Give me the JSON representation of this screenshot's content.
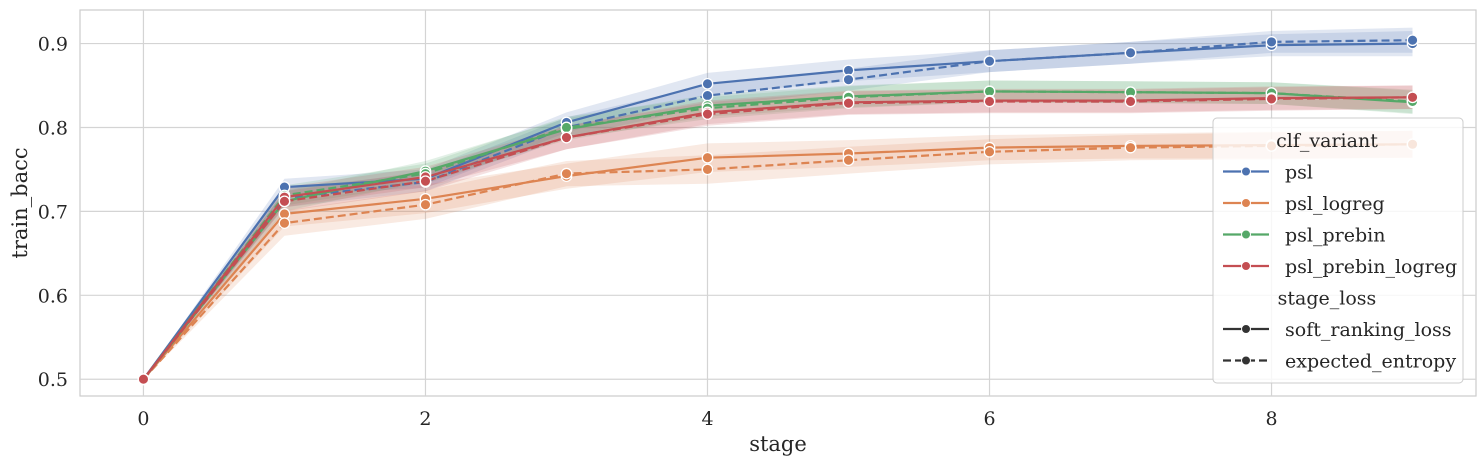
{
  "chart_data": {
    "type": "line",
    "xlabel": "stage",
    "ylabel": "train_bacc",
    "xlim": [
      -0.45,
      9.45
    ],
    "ylim": [
      0.48,
      0.94
    ],
    "xticks": [
      0,
      2,
      4,
      6,
      8
    ],
    "yticks": [
      0.5,
      0.6,
      0.7,
      0.8,
      0.9
    ],
    "xtick_labels": [
      "0",
      "2",
      "4",
      "6",
      "8"
    ],
    "ytick_labels": [
      "0.5",
      "0.6",
      "0.7",
      "0.8",
      "0.9"
    ],
    "grid": true,
    "legend_position": "right",
    "x": [
      0,
      1,
      2,
      3,
      4,
      5,
      6,
      7,
      8,
      9
    ],
    "legend": {
      "hue_title": "clf_variant",
      "style_title": "stage_loss",
      "hue_entries": [
        "psl",
        "psl_logreg",
        "psl_prebin",
        "psl_prebin_logreg"
      ],
      "style_entries": [
        "soft_ranking_loss",
        "expected_entropy"
      ]
    },
    "series": [
      {
        "name": "psl",
        "style": "soft_ranking_loss",
        "color": "#4c72b0",
        "values": [
          0.5,
          0.729,
          0.739,
          0.806,
          0.852,
          0.868,
          0.879,
          0.889,
          0.898,
          0.9
        ],
        "band": [
          0.01,
          0.011,
          0.012,
          0.013,
          0.013,
          0.013,
          0.013,
          0.013,
          0.015
        ]
      },
      {
        "name": "psl",
        "style": "expected_entropy",
        "color": "#4c72b0",
        "values": [
          0.5,
          0.716,
          0.735,
          0.8,
          0.838,
          0.857,
          0.879,
          0.889,
          0.902,
          0.904
        ],
        "band": [
          0.011,
          0.011,
          0.012,
          0.013,
          0.013,
          0.013,
          0.013,
          0.013,
          0.015
        ]
      },
      {
        "name": "psl_logreg",
        "style": "soft_ranking_loss",
        "color": "#dd8452",
        "values": [
          0.5,
          0.697,
          0.715,
          0.742,
          0.764,
          0.769,
          0.776,
          0.778,
          0.779,
          0.78
        ],
        "band": [
          0.015,
          0.017,
          0.015,
          0.017,
          0.016,
          0.015,
          0.015,
          0.016,
          0.016
        ]
      },
      {
        "name": "psl_logreg",
        "style": "expected_entropy",
        "color": "#dd8452",
        "values": [
          0.5,
          0.686,
          0.708,
          0.745,
          0.75,
          0.761,
          0.771,
          0.776,
          0.778,
          0.78
        ],
        "band": [
          0.015,
          0.017,
          0.015,
          0.017,
          0.016,
          0.015,
          0.015,
          0.016,
          0.016
        ]
      },
      {
        "name": "psl_prebin",
        "style": "soft_ranking_loss",
        "color": "#55a868",
        "values": [
          0.5,
          0.712,
          0.748,
          0.798,
          0.826,
          0.837,
          0.843,
          0.842,
          0.841,
          0.83
        ],
        "band": [
          0.012,
          0.012,
          0.013,
          0.013,
          0.013,
          0.013,
          0.013,
          0.013,
          0.014
        ]
      },
      {
        "name": "psl_prebin",
        "style": "expected_entropy",
        "color": "#55a868",
        "values": [
          0.5,
          0.719,
          0.745,
          0.8,
          0.823,
          0.836,
          0.843,
          0.842,
          0.841,
          0.831
        ],
        "band": [
          0.012,
          0.012,
          0.013,
          0.013,
          0.013,
          0.013,
          0.013,
          0.013,
          0.014
        ]
      },
      {
        "name": "psl_prebin_logreg",
        "style": "soft_ranking_loss",
        "color": "#c44e52",
        "values": [
          0.5,
          0.717,
          0.741,
          0.788,
          0.818,
          0.83,
          0.832,
          0.832,
          0.835,
          0.836
        ],
        "band": [
          0.012,
          0.012,
          0.014,
          0.014,
          0.014,
          0.014,
          0.014,
          0.014,
          0.014
        ]
      },
      {
        "name": "psl_prebin_logreg",
        "style": "expected_entropy",
        "color": "#c44e52",
        "values": [
          0.5,
          0.712,
          0.736,
          0.788,
          0.816,
          0.829,
          0.831,
          0.831,
          0.834,
          0.836
        ],
        "band": [
          0.012,
          0.012,
          0.014,
          0.014,
          0.014,
          0.014,
          0.014,
          0.014,
          0.014
        ]
      }
    ]
  }
}
